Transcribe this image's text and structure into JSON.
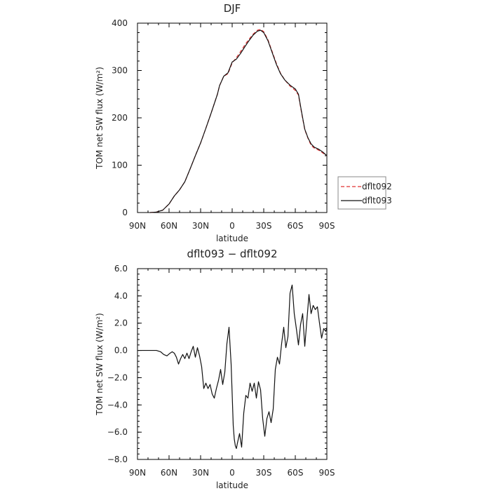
{
  "chart_data": [
    {
      "type": "line",
      "title": "DJF",
      "xlabel": "latitude",
      "ylabel": "TOM net SW flux (W/m²)",
      "xlim": [
        -90,
        90
      ],
      "ylim": [
        0,
        400
      ],
      "x_ticks": [
        {
          "value": -90,
          "label": "90N"
        },
        {
          "value": -60,
          "label": "60N"
        },
        {
          "value": -30,
          "label": "30N"
        },
        {
          "value": 0,
          "label": "0"
        },
        {
          "value": 30,
          "label": "30S"
        },
        {
          "value": 60,
          "label": "60S"
        },
        {
          "value": 90,
          "label": "90S"
        }
      ],
      "y_ticks": [
        {
          "value": 0,
          "label": "0"
        },
        {
          "value": 100,
          "label": "100"
        },
        {
          "value": 200,
          "label": "200"
        },
        {
          "value": 300,
          "label": "300"
        },
        {
          "value": 400,
          "label": "400"
        }
      ],
      "legend": {
        "placement": "right",
        "entries": [
          "dflt092",
          "dflt093"
        ]
      },
      "series": [
        {
          "name": "dflt092",
          "color": "#e03030",
          "dash": "dashed",
          "x": [
            -78,
            -72,
            -66,
            -60,
            -55,
            -50,
            -45,
            -40,
            -35,
            -30,
            -25,
            -20,
            -17,
            -14,
            -12,
            -8,
            -4,
            0,
            4,
            8,
            12,
            16,
            20,
            24,
            27,
            30,
            34,
            38,
            42,
            46,
            50,
            55,
            60,
            63,
            66,
            69,
            72,
            75,
            78,
            82,
            86,
            90
          ],
          "y": [
            0,
            1,
            5,
            18,
            35,
            48,
            65,
            92,
            120,
            147,
            178,
            210,
            230,
            250,
            268,
            288,
            293,
            316,
            327,
            340,
            354,
            366,
            377,
            385,
            387,
            382,
            365,
            340,
            315,
            294,
            280,
            267,
            258,
            248,
            210,
            175,
            157,
            142,
            136,
            132,
            126,
            120
          ]
        },
        {
          "name": "dflt093",
          "color": "#111111",
          "dash": "solid",
          "x": [
            -78,
            -72,
            -66,
            -60,
            -55,
            -50,
            -45,
            -40,
            -35,
            -30,
            -25,
            -20,
            -17,
            -14,
            -12,
            -8,
            -4,
            0,
            4,
            8,
            12,
            16,
            20,
            24,
            27,
            30,
            34,
            38,
            42,
            46,
            50,
            55,
            60,
            63,
            66,
            69,
            72,
            75,
            78,
            82,
            86,
            90
          ],
          "y": [
            0,
            1,
            5,
            18,
            35,
            48,
            65,
            92,
            120,
            147,
            178,
            210,
            230,
            250,
            268,
            288,
            295,
            318,
            324,
            336,
            350,
            363,
            375,
            383,
            385,
            380,
            363,
            338,
            313,
            293,
            280,
            269,
            261,
            250,
            212,
            176,
            158,
            145,
            138,
            134,
            128,
            120
          ]
        }
      ]
    },
    {
      "type": "line",
      "title": "dflt093 − dflt092",
      "xlabel": "latitude",
      "ylabel": "TOM net SW flux (W/m²)",
      "xlim": [
        -90,
        90
      ],
      "ylim": [
        -8,
        6
      ],
      "x_ticks": [
        {
          "value": -90,
          "label": "90N"
        },
        {
          "value": -60,
          "label": "60N"
        },
        {
          "value": -30,
          "label": "30N"
        },
        {
          "value": 0,
          "label": "0"
        },
        {
          "value": 30,
          "label": "30S"
        },
        {
          "value": 60,
          "label": "60S"
        },
        {
          "value": 90,
          "label": "90S"
        }
      ],
      "y_ticks": [
        {
          "value": -8,
          "label": "−8.0"
        },
        {
          "value": -6,
          "label": "−6.0"
        },
        {
          "value": -4,
          "label": "−4.0"
        },
        {
          "value": -2,
          "label": "−2.0"
        },
        {
          "value": 0,
          "label": "0.0"
        },
        {
          "value": 2,
          "label": "2.0"
        },
        {
          "value": 4,
          "label": "4.0"
        },
        {
          "value": 6,
          "label": "6.0"
        }
      ],
      "series": [
        {
          "color": "#111111",
          "dash": "solid",
          "x": [
            -90,
            -72,
            -68,
            -65,
            -62,
            -59,
            -57,
            -55,
            -53,
            -51,
            -49,
            -47,
            -45,
            -43,
            -41,
            -39,
            -37,
            -35,
            -33,
            -31,
            -29,
            -27,
            -25,
            -23,
            -21,
            -19,
            -17,
            -15,
            -13,
            -11,
            -9,
            -7,
            -5,
            -3,
            -1,
            0,
            1,
            2,
            3,
            4,
            5,
            7,
            9,
            11,
            13,
            15,
            17,
            19,
            21,
            23,
            25,
            27,
            29,
            31,
            33,
            35,
            37,
            39,
            41,
            43,
            45,
            47,
            49,
            51,
            53,
            55,
            57,
            59,
            61,
            63,
            65,
            67,
            69,
            71,
            73,
            75,
            77,
            79,
            81,
            83,
            85,
            87,
            89,
            90
          ],
          "y": [
            0,
            0,
            -0.1,
            -0.3,
            -0.4,
            -0.2,
            -0.1,
            -0.2,
            -0.5,
            -1.0,
            -0.6,
            -0.3,
            -0.6,
            -0.2,
            -0.6,
            -0.1,
            0.3,
            -0.5,
            0.2,
            -0.4,
            -1.2,
            -2.8,
            -2.4,
            -2.8,
            -2.5,
            -3.2,
            -3.5,
            -2.8,
            -2.2,
            -1.4,
            -2.5,
            -1.6,
            0.5,
            1.7,
            -1.0,
            -3.2,
            -5.5,
            -6.5,
            -7.0,
            -7.2,
            -6.8,
            -6.1,
            -7.1,
            -4.6,
            -3.3,
            -3.5,
            -2.4,
            -3.0,
            -2.4,
            -3.5,
            -2.3,
            -2.9,
            -5.0,
            -6.3,
            -5.0,
            -4.5,
            -5.3,
            -4.3,
            -1.4,
            -0.5,
            -1.0,
            0.5,
            1.7,
            0.2,
            1.0,
            4.2,
            4.8,
            2.7,
            1.6,
            0.4,
            1.9,
            2.7,
            0.3,
            2.2,
            4.1,
            2.7,
            3.3,
            3.0,
            3.2,
            2.0,
            0.9,
            1.6,
            1.4,
            1.7
          ]
        }
      ]
    }
  ]
}
